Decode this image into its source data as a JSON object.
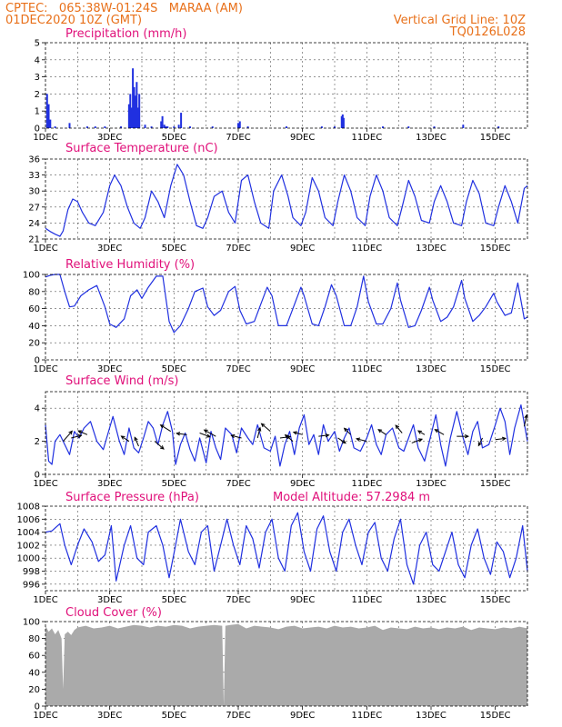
{
  "header": {
    "line1": "CPTEC:   065:38W-01:24S   MARAA (AM)",
    "line2": "01DEC2020 10Z (GMT)",
    "right1": "Vertical Grid Line: 10Z",
    "right2": "TQ0126L028"
  },
  "colors": {
    "header": "#e8701a",
    "panel_title": "#e0107a",
    "series": "#2030e0",
    "cloud_fill": "#aaaaaa",
    "wind_arrow": "#000000"
  },
  "chart_data": [
    {
      "type": "bar",
      "title": "Precipitation (mm/h)",
      "ylim": [
        0,
        5
      ],
      "yticks": [
        0,
        1,
        2,
        3,
        4,
        5
      ],
      "xticks": [
        "1DEC",
        "3DEC",
        "5DEC",
        "7DEC",
        "9DEC",
        "11DEC",
        "13DEC",
        "15DEC"
      ],
      "x": [
        1.05,
        1.1,
        1.15,
        1.3,
        1.75,
        2.3,
        2.55,
        2.85,
        3.35,
        3.6,
        3.64,
        3.68,
        3.72,
        3.76,
        3.8,
        3.84,
        3.88,
        3.92,
        4.1,
        4.3,
        4.6,
        4.64,
        4.7,
        4.75,
        4.8,
        5.0,
        5.15,
        5.22,
        5.5,
        6.2,
        7.0,
        7.05,
        7.3,
        8.5,
        9.6,
        10.0,
        10.22,
        10.25,
        10.28,
        11.5,
        12.3,
        13.1,
        14.0,
        15.1
      ],
      "values": [
        2.0,
        1.4,
        0.5,
        0.1,
        0.3,
        0.1,
        0.1,
        0.1,
        0.1,
        1.4,
        2.0,
        1.2,
        3.5,
        2.4,
        1.9,
        2.7,
        1.2,
        2.0,
        0.2,
        0.1,
        0.4,
        0.7,
        0.2,
        0.1,
        0.1,
        0.1,
        0.2,
        0.9,
        0.1,
        0.1,
        0.3,
        0.4,
        0.1,
        0.1,
        0.1,
        0.1,
        0.7,
        0.8,
        0.6,
        0.1,
        0.1,
        0.1,
        0.2,
        0.1
      ]
    },
    {
      "type": "line",
      "title": "Surface Temperature (nC)",
      "ylim": [
        21,
        36
      ],
      "yticks": [
        21,
        24,
        27,
        30,
        33,
        36
      ],
      "xticks": [
        "1DEC",
        "3DEC",
        "5DEC",
        "7DEC",
        "9DEC",
        "11DEC",
        "13DEC",
        "15DEC"
      ],
      "x": [
        1.0,
        1.15,
        1.3,
        1.45,
        1.55,
        1.7,
        1.85,
        2.0,
        2.15,
        2.35,
        2.55,
        2.8,
        3.0,
        3.15,
        3.35,
        3.55,
        3.75,
        3.95,
        4.1,
        4.3,
        4.5,
        4.7,
        4.9,
        5.1,
        5.3,
        5.5,
        5.7,
        5.9,
        6.05,
        6.25,
        6.5,
        6.7,
        6.9,
        7.1,
        7.3,
        7.5,
        7.7,
        7.95,
        8.1,
        8.35,
        8.55,
        8.7,
        8.95,
        9.1,
        9.3,
        9.5,
        9.7,
        9.95,
        10.1,
        10.3,
        10.5,
        10.7,
        10.95,
        11.1,
        11.3,
        11.5,
        11.7,
        11.95,
        12.1,
        12.3,
        12.5,
        12.7,
        12.95,
        13.1,
        13.3,
        13.5,
        13.7,
        13.95,
        14.1,
        14.3,
        14.5,
        14.7,
        14.95,
        15.1,
        15.3,
        15.5,
        15.7,
        15.9,
        16.0
      ],
      "y": [
        23.0,
        22.4,
        21.9,
        21.5,
        22.5,
        26.5,
        28.5,
        28.0,
        26.0,
        24.0,
        23.5,
        26.0,
        31.0,
        33.0,
        31.0,
        27.0,
        24.0,
        23.0,
        25.0,
        30.0,
        28.0,
        25.0,
        31.0,
        35.0,
        33.0,
        28.0,
        23.5,
        23.0,
        25.0,
        29.0,
        30.0,
        26.0,
        24.0,
        32.0,
        33.0,
        28.0,
        24.0,
        23.0,
        30.0,
        33.0,
        29.0,
        25.0,
        23.5,
        26.0,
        32.5,
        30.0,
        25.0,
        23.5,
        28.0,
        33.0,
        30.0,
        25.0,
        23.5,
        29.0,
        33.0,
        30.0,
        25.0,
        23.5,
        27.0,
        32.0,
        29.0,
        24.5,
        24.0,
        28.0,
        31.0,
        28.0,
        24.0,
        23.5,
        28.0,
        32.0,
        29.5,
        24.0,
        23.5,
        27.0,
        31.0,
        28.0,
        24.0,
        30.5,
        31.0
      ]
    },
    {
      "type": "line",
      "title": "Relative Humidity (%)",
      "ylim": [
        0,
        100
      ],
      "yticks": [
        0,
        20,
        40,
        60,
        80,
        100
      ],
      "xticks": [
        "1DEC",
        "3DEC",
        "5DEC",
        "7DEC",
        "9DEC",
        "11DEC",
        "13DEC",
        "15DEC"
      ],
      "x": [
        1.0,
        1.15,
        1.3,
        1.45,
        1.6,
        1.75,
        1.9,
        2.1,
        2.35,
        2.6,
        2.85,
        3.0,
        3.2,
        3.45,
        3.65,
        3.85,
        4.0,
        4.2,
        4.45,
        4.65,
        4.85,
        5.0,
        5.2,
        5.45,
        5.65,
        5.9,
        6.05,
        6.25,
        6.45,
        6.7,
        6.9,
        7.05,
        7.25,
        7.5,
        7.7,
        7.9,
        8.05,
        8.25,
        8.5,
        8.7,
        8.95,
        9.05,
        9.3,
        9.5,
        9.7,
        9.9,
        10.05,
        10.3,
        10.5,
        10.7,
        10.9,
        11.05,
        11.3,
        11.5,
        11.75,
        11.95,
        12.05,
        12.3,
        12.5,
        12.7,
        12.95,
        13.05,
        13.3,
        13.5,
        13.7,
        13.95,
        14.05,
        14.3,
        14.5,
        14.7,
        14.95,
        15.05,
        15.3,
        15.5,
        15.7,
        15.9,
        16.0
      ],
      "y": [
        97.0,
        99.0,
        100.0,
        100.0,
        80.0,
        62.0,
        63.0,
        75.0,
        82.0,
        87.0,
        62.0,
        42.0,
        38.0,
        48.0,
        75.0,
        82.0,
        72.0,
        85.0,
        98.0,
        98.0,
        45.0,
        32.0,
        40.0,
        60.0,
        80.0,
        84.0,
        62.0,
        52.0,
        58.0,
        80.0,
        86.0,
        58.0,
        42.0,
        45.0,
        65.0,
        85.0,
        75.0,
        40.0,
        40.0,
        60.0,
        85.0,
        75.0,
        42.0,
        40.0,
        62.0,
        88.0,
        75.0,
        40.0,
        40.0,
        62.0,
        98.0,
        68.0,
        42.0,
        42.0,
        60.0,
        90.0,
        70.0,
        38.0,
        40.0,
        58.0,
        85.0,
        70.0,
        45.0,
        50.0,
        62.0,
        93.0,
        72.0,
        45.0,
        52.0,
        62.0,
        78.0,
        68.0,
        52.0,
        55.0,
        90.0,
        48.0,
        50.0
      ]
    },
    {
      "type": "line",
      "title": "Surface Wind (m/s)",
      "ylim": [
        0,
        5
      ],
      "yticks": [
        0,
        2,
        4
      ],
      "xticks": [
        "1DEC",
        "3DEC",
        "5DEC",
        "7DEC",
        "9DEC",
        "11DEC",
        "13DEC",
        "15DEC"
      ],
      "x": [
        1.0,
        1.1,
        1.2,
        1.3,
        1.45,
        1.6,
        1.75,
        1.9,
        2.05,
        2.2,
        2.4,
        2.6,
        2.8,
        2.95,
        3.1,
        3.3,
        3.45,
        3.6,
        3.75,
        3.9,
        4.05,
        4.2,
        4.35,
        4.5,
        4.65,
        4.8,
        4.95,
        5.05,
        5.2,
        5.35,
        5.5,
        5.65,
        5.8,
        6.0,
        6.15,
        6.3,
        6.45,
        6.6,
        6.8,
        6.95,
        7.1,
        7.3,
        7.45,
        7.6,
        7.8,
        8.0,
        8.15,
        8.3,
        8.45,
        8.6,
        8.75,
        8.9,
        9.05,
        9.2,
        9.35,
        9.5,
        9.65,
        9.8,
        10.0,
        10.15,
        10.3,
        10.45,
        10.6,
        10.8,
        11.0,
        11.15,
        11.3,
        11.45,
        11.6,
        11.8,
        12.0,
        12.15,
        12.3,
        12.45,
        12.6,
        12.8,
        13.0,
        13.15,
        13.3,
        13.45,
        13.6,
        13.8,
        14.0,
        14.15,
        14.3,
        14.45,
        14.6,
        14.8,
        15.0,
        15.15,
        15.3,
        15.45,
        15.6,
        15.8,
        16.0
      ],
      "y": [
        3.0,
        0.8,
        0.6,
        2.0,
        2.4,
        1.8,
        1.2,
        2.6,
        2.2,
        2.8,
        3.2,
        2.0,
        1.5,
        2.5,
        3.5,
        2.0,
        1.2,
        2.8,
        1.6,
        1.3,
        2.2,
        3.2,
        2.8,
        1.8,
        3.0,
        3.8,
        2.6,
        0.6,
        1.8,
        2.5,
        1.5,
        0.8,
        2.2,
        0.7,
        2.6,
        1.6,
        0.9,
        2.8,
        2.4,
        1.3,
        2.8,
        2.2,
        1.8,
        3.0,
        1.6,
        1.4,
        2.3,
        0.5,
        1.8,
        2.6,
        1.2,
        2.8,
        3.6,
        1.8,
        2.4,
        1.2,
        3.0,
        2.0,
        2.6,
        1.4,
        2.2,
        2.8,
        1.6,
        1.4,
        2.2,
        3.0,
        1.8,
        1.2,
        2.4,
        2.8,
        1.6,
        1.4,
        2.2,
        3.0,
        1.6,
        0.8,
        2.4,
        3.6,
        1.8,
        0.5,
        2.2,
        3.8,
        2.2,
        1.2,
        2.6,
        3.2,
        1.6,
        1.8,
        3.0,
        4.0,
        3.2,
        1.2,
        2.8,
        4.2,
        2.0
      ],
      "arrows": [
        {
          "x": 1.55,
          "y": 2.0,
          "u": 0.7,
          "v": 0.8
        },
        {
          "x": 1.8,
          "y": 2.2,
          "u": 0.8,
          "v": 0.2
        },
        {
          "x": 2.3,
          "y": 2.4,
          "u": -0.7,
          "v": 0.3
        },
        {
          "x": 3.6,
          "y": 2.0,
          "u": -0.6,
          "v": 0.4
        },
        {
          "x": 3.9,
          "y": 1.7,
          "u": -0.3,
          "v": 0.7
        },
        {
          "x": 4.4,
          "y": 2.0,
          "u": 0.7,
          "v": -0.6
        },
        {
          "x": 4.9,
          "y": 2.6,
          "u": -0.8,
          "v": 0.5
        },
        {
          "x": 5.4,
          "y": 2.4,
          "u": -0.8,
          "v": 0.1
        },
        {
          "x": 5.8,
          "y": 2.5,
          "u": 0.8,
          "v": -0.3
        },
        {
          "x": 6.3,
          "y": 2.3,
          "u": -0.9,
          "v": 0.5
        },
        {
          "x": 7.1,
          "y": 2.2,
          "u": -0.8,
          "v": 0.2
        },
        {
          "x": 7.6,
          "y": 2.2,
          "u": 0.2,
          "v": 0.8
        },
        {
          "x": 8.0,
          "y": 2.6,
          "u": -0.7,
          "v": 0.6
        },
        {
          "x": 8.3,
          "y": 2.2,
          "u": 0.8,
          "v": 0.1
        },
        {
          "x": 8.7,
          "y": 2.0,
          "u": -0.6,
          "v": 0.5
        },
        {
          "x": 9.0,
          "y": 2.4,
          "u": -0.7,
          "v": 0.2
        },
        {
          "x": 9.5,
          "y": 2.3,
          "u": 0.8,
          "v": 0.1
        },
        {
          "x": 10.1,
          "y": 2.2,
          "u": 0.6,
          "v": -0.4
        },
        {
          "x": 10.5,
          "y": 2.4,
          "u": -0.5,
          "v": 0.5
        },
        {
          "x": 11.0,
          "y": 2.0,
          "u": -0.8,
          "v": 0.2
        },
        {
          "x": 11.6,
          "y": 2.4,
          "u": -0.6,
          "v": 0.4
        },
        {
          "x": 12.1,
          "y": 2.5,
          "u": -0.5,
          "v": 0.6
        },
        {
          "x": 12.4,
          "y": 1.9,
          "u": 0.8,
          "v": 0.3
        },
        {
          "x": 12.8,
          "y": 2.4,
          "u": -0.5,
          "v": 0.3
        },
        {
          "x": 13.4,
          "y": 2.4,
          "u": -0.7,
          "v": 0.4
        },
        {
          "x": 13.8,
          "y": 2.3,
          "u": 0.9,
          "v": 0.0
        },
        {
          "x": 14.6,
          "y": 2.2,
          "u": -0.3,
          "v": -0.6
        },
        {
          "x": 15.0,
          "y": 2.1,
          "u": 0.8,
          "v": 0.1
        },
        {
          "x": 15.9,
          "y": 2.9,
          "u": 0.2,
          "v": 0.9
        }
      ]
    },
    {
      "type": "line",
      "title": "Surface Pressure (hPa)",
      "annotation": "Model Altitude: 57.2984 m",
      "ylim": [
        995,
        1008
      ],
      "yticks": [
        996,
        998,
        1000,
        1002,
        1004,
        1006,
        1008
      ],
      "xticks": [
        "1DEC",
        "3DEC",
        "5DEC",
        "7DEC",
        "9DEC",
        "11DEC",
        "13DEC",
        "15DEC"
      ],
      "x": [
        1.0,
        1.2,
        1.45,
        1.6,
        1.8,
        2.0,
        2.2,
        2.45,
        2.65,
        2.85,
        3.05,
        3.2,
        3.45,
        3.65,
        3.85,
        4.05,
        4.2,
        4.45,
        4.65,
        4.85,
        5.05,
        5.2,
        5.45,
        5.65,
        5.85,
        6.05,
        6.25,
        6.45,
        6.65,
        6.85,
        7.05,
        7.25,
        7.45,
        7.65,
        7.85,
        8.05,
        8.25,
        8.45,
        8.65,
        8.85,
        9.05,
        9.25,
        9.45,
        9.65,
        9.85,
        10.05,
        10.25,
        10.45,
        10.65,
        10.85,
        11.05,
        11.25,
        11.45,
        11.65,
        11.85,
        12.05,
        12.25,
        12.45,
        12.65,
        12.85,
        13.05,
        13.25,
        13.45,
        13.65,
        13.85,
        14.05,
        14.25,
        14.45,
        14.65,
        14.85,
        15.05,
        15.25,
        15.45,
        15.65,
        15.85,
        16.0
      ],
      "y": [
        1004.0,
        1004.2,
        1005.3,
        1002.0,
        999.0,
        1002.0,
        1004.5,
        1002.5,
        999.5,
        1000.5,
        1005.0,
        996.5,
        1002.0,
        1005.0,
        1000.0,
        999.0,
        1004.0,
        1005.0,
        1002.0,
        997.0,
        1002.0,
        1006.0,
        1001.0,
        999.0,
        1004.0,
        1005.0,
        998.0,
        1002.0,
        1006.0,
        1002.0,
        999.0,
        1005.0,
        1003.0,
        998.5,
        1004.0,
        1006.0,
        1000.0,
        998.0,
        1005.0,
        1007.0,
        1001.0,
        998.0,
        1004.5,
        1006.5,
        1001.0,
        998.0,
        1004.0,
        1006.0,
        1002.0,
        999.0,
        1004.0,
        1005.5,
        1000.0,
        998.0,
        1003.0,
        1006.0,
        999.0,
        996.0,
        1002.0,
        1004.0,
        999.0,
        998.0,
        1001.0,
        1004.0,
        999.0,
        997.0,
        1002.0,
        1004.5,
        1000.0,
        997.5,
        1002.5,
        1001.0,
        997.0,
        1000.0,
        1005.0,
        998.0
      ]
    },
    {
      "type": "area",
      "title": "Cloud Cover (%)",
      "ylim": [
        0,
        100
      ],
      "yticks": [
        0,
        20,
        40,
        60,
        80,
        100
      ],
      "xticks": [
        "1DEC",
        "3DEC",
        "5DEC",
        "7DEC",
        "9DEC",
        "11DEC",
        "13DEC",
        "15DEC"
      ],
      "x": [
        1.0,
        1.1,
        1.2,
        1.3,
        1.4,
        1.5,
        1.55,
        1.6,
        1.7,
        1.8,
        1.9,
        2.0,
        2.25,
        2.5,
        2.75,
        3.0,
        3.25,
        3.5,
        3.75,
        4.0,
        4.25,
        4.5,
        4.75,
        5.0,
        5.25,
        5.5,
        5.75,
        6.0,
        6.25,
        6.5,
        6.55,
        6.6,
        6.75,
        7.0,
        7.25,
        7.5,
        7.75,
        8.0,
        8.25,
        8.5,
        8.75,
        9.0,
        9.25,
        9.5,
        9.75,
        10.0,
        10.25,
        10.5,
        10.75,
        11.0,
        11.25,
        11.5,
        11.75,
        12.0,
        12.25,
        12.5,
        12.75,
        13.0,
        13.25,
        13.5,
        13.75,
        14.0,
        14.25,
        14.5,
        14.75,
        15.0,
        15.25,
        15.5,
        15.75,
        16.0
      ],
      "y": [
        95,
        88,
        92,
        85,
        90,
        80,
        20,
        85,
        88,
        84,
        90,
        93,
        95,
        92,
        93,
        95,
        92,
        94,
        96,
        95,
        93,
        95,
        94,
        96,
        95,
        92,
        94,
        95,
        96,
        95,
        0,
        95,
        96,
        97,
        92,
        95,
        94,
        93,
        91,
        94,
        95,
        92,
        93,
        94,
        92,
        95,
        93,
        94,
        92,
        93,
        95,
        90,
        93,
        92,
        91,
        94,
        92,
        93,
        91,
        93,
        92,
        94,
        90,
        93,
        92,
        91,
        93,
        92,
        94,
        92
      ]
    }
  ]
}
